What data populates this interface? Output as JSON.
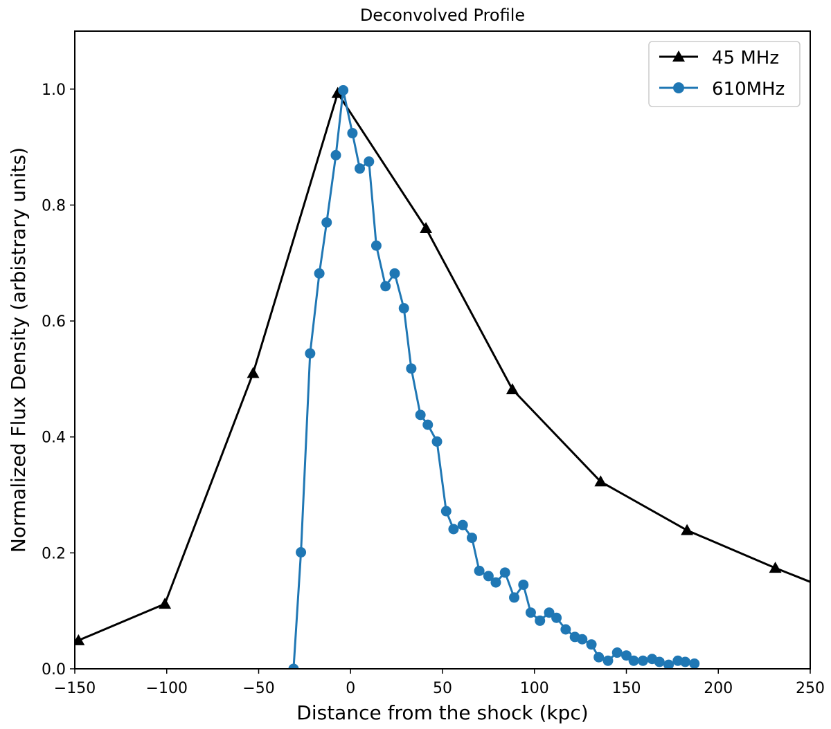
{
  "chart_data": {
    "type": "line",
    "title": "Deconvolved Profile",
    "xlabel": "Distance from the shock (kpc)",
    "ylabel": "Normalized Flux Density (arbistrary units)",
    "xlim": [
      -150,
      250
    ],
    "ylim": [
      0.0,
      1.1
    ],
    "xticks": [
      -150,
      -100,
      -50,
      0,
      50,
      100,
      150,
      200,
      250
    ],
    "xtick_labels": [
      "−150",
      "−100",
      "−50",
      "0",
      "50",
      "100",
      "150",
      "200",
      "250"
    ],
    "yticks": [
      0.0,
      0.2,
      0.4,
      0.6,
      0.8,
      1.0
    ],
    "ytick_labels": [
      "0.0",
      "0.2",
      "0.4",
      "0.6",
      "0.8",
      "1.0"
    ],
    "grid": false,
    "legend_position": "top-right",
    "series": [
      {
        "name": "45 MHz",
        "color": "#000000",
        "marker": "triangle",
        "x": [
          -148,
          -101,
          -53,
          -7,
          41,
          88,
          136,
          183,
          231,
          250
        ],
        "y": [
          0.049,
          0.112,
          0.51,
          0.993,
          0.76,
          0.482,
          0.323,
          0.239,
          0.174,
          0.15
        ]
      },
      {
        "name": "610MHz",
        "color": "#1f77b4",
        "marker": "circle",
        "x": [
          -31,
          -27,
          -22,
          -17,
          -13,
          -8,
          -4,
          1,
          5,
          10,
          14,
          19,
          24,
          29,
          33,
          38,
          42,
          47,
          52,
          56,
          61,
          66,
          70,
          75,
          79,
          84,
          89,
          94,
          98,
          103,
          108,
          112,
          117,
          122,
          126,
          131,
          135,
          140,
          145,
          150,
          154,
          159,
          164,
          168,
          173,
          178,
          182,
          187
        ],
        "y": [
          0.0,
          0.201,
          0.544,
          0.682,
          0.77,
          0.886,
          0.998,
          0.924,
          0.863,
          0.875,
          0.73,
          0.66,
          0.682,
          0.622,
          0.518,
          0.438,
          0.421,
          0.392,
          0.272,
          0.241,
          0.248,
          0.226,
          0.169,
          0.16,
          0.149,
          0.166,
          0.123,
          0.145,
          0.097,
          0.083,
          0.097,
          0.088,
          0.068,
          0.055,
          0.051,
          0.042,
          0.02,
          0.014,
          0.028,
          0.023,
          0.014,
          0.014,
          0.017,
          0.012,
          0.007,
          0.014,
          0.012,
          0.009
        ]
      }
    ]
  }
}
